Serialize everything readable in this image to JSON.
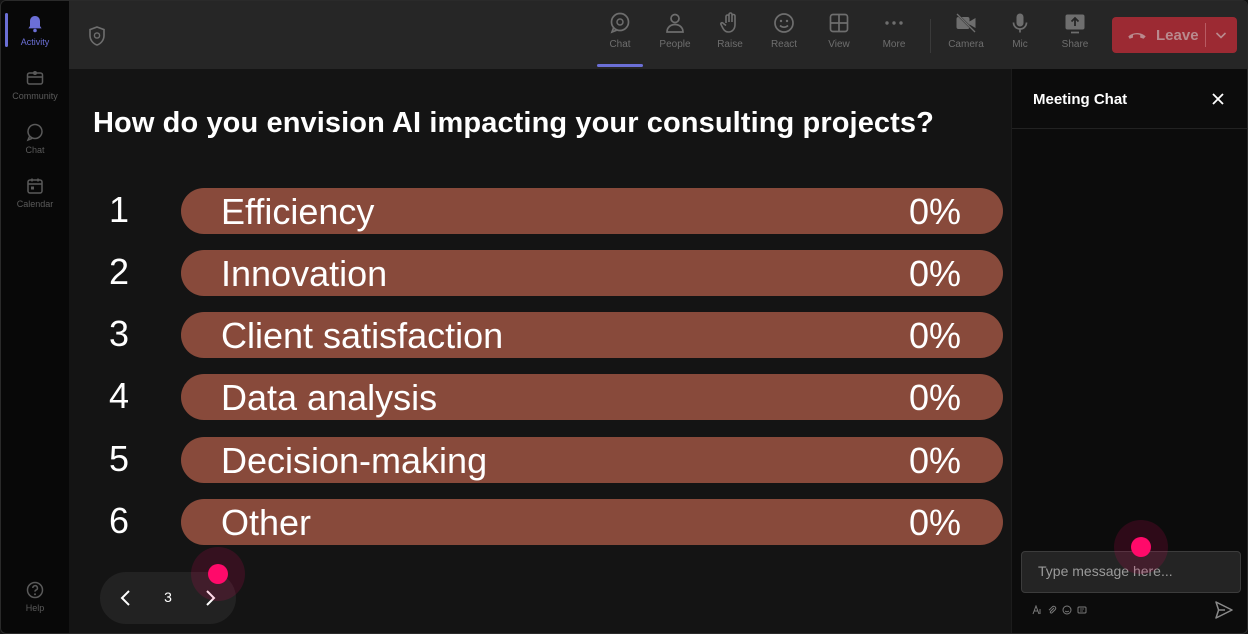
{
  "rail": {
    "items": [
      {
        "label": "Activity",
        "icon": "bell-icon",
        "active": true
      },
      {
        "label": "Community",
        "icon": "community-icon",
        "active": false
      },
      {
        "label": "Chat",
        "icon": "chat-icon",
        "active": false
      },
      {
        "label": "Calendar",
        "icon": "calendar-icon",
        "active": false
      }
    ],
    "help_label": "Help"
  },
  "toolbar": {
    "buttons": [
      {
        "label": "Chat",
        "icon": "chat-icon",
        "active": true
      },
      {
        "label": "People",
        "icon": "people-icon",
        "active": false
      },
      {
        "label": "Raise",
        "icon": "raise-hand-icon",
        "active": false
      },
      {
        "label": "React",
        "icon": "smiley-icon",
        "active": false
      },
      {
        "label": "View",
        "icon": "grid-icon",
        "active": false
      },
      {
        "label": "More",
        "icon": "more-icon",
        "active": false
      },
      {
        "label": "Camera",
        "icon": "camera-off-icon",
        "active": false
      },
      {
        "label": "Mic",
        "icon": "mic-icon",
        "active": false
      },
      {
        "label": "Share",
        "icon": "share-icon",
        "active": false
      }
    ],
    "leave_label": "Leave",
    "leave_color": "#9c2a33"
  },
  "poll": {
    "question": "How do you envision AI impacting your consulting projects?",
    "bar_color": "#884a3b",
    "options": [
      {
        "number": "1",
        "label": "Efficiency",
        "percent": "0%"
      },
      {
        "number": "2",
        "label": "Innovation",
        "percent": "0%"
      },
      {
        "number": "3",
        "label": "Client satisfaction",
        "percent": "0%"
      },
      {
        "number": "4",
        "label": "Data analysis",
        "percent": "0%"
      },
      {
        "number": "5",
        "label": "Decision-making",
        "percent": "0%"
      },
      {
        "number": "6",
        "label": "Other",
        "percent": "0%"
      }
    ]
  },
  "pager": {
    "page": "3"
  },
  "chat": {
    "title": "Meeting Chat",
    "input_placeholder": "Type message here..."
  },
  "colors": {
    "accent": "#6b6fd6",
    "cursor": "#ff0a6a"
  }
}
